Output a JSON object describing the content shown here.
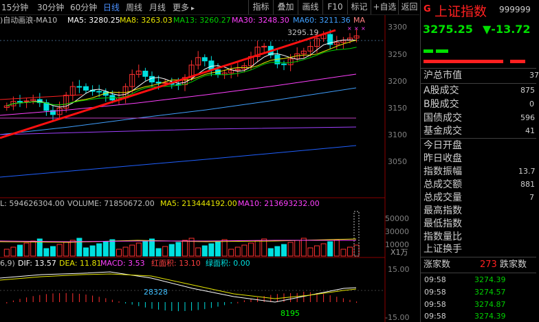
{
  "toolbar": {
    "periods": [
      "15分钟",
      "30分钟",
      "60分钟",
      "日线",
      "周线",
      "月线",
      "更多"
    ],
    "active_period": "日线",
    "more_arrow": "▸",
    "buttons": [
      "指标",
      "叠加",
      "画线",
      "F10",
      "标记",
      "+自选",
      "返回"
    ]
  },
  "main_chart": {
    "header_prefix": ")自动画浪-MA10",
    "ma5_label": "MA5: 3280.25",
    "ma8_label": "MA8: 3263.03",
    "ma13_label": "MA13: 3260.27",
    "ma30_label": "MA30: 3248.30",
    "ma60_label": "MA60: 3211.36",
    "ma_suffix": "MA",
    "price_annotation": "3295.19",
    "price_axis": [
      "3300",
      "3250",
      "3200",
      "3150",
      "3100",
      "3050"
    ],
    "colors": {
      "ma5": "#ffffff",
      "ma8": "#e8e800",
      "ma13": "#ff40ff",
      "ma30": "#00d000",
      "ma60": "#40a0ff",
      "up": "#ff3030",
      "down": "#00e0e0",
      "trend": "#ff1010"
    }
  },
  "volume_chart": {
    "header_prefix": "L: 594626304.00",
    "volume_label": "VOLUME: 71850672.00",
    "ma5_label": "MA5: 213444192.00",
    "ma10_label": "MA10: 213693232.00",
    "axis": [
      "50000",
      "30000",
      "10000"
    ],
    "unit": "X1万"
  },
  "macd_chart": {
    "header_prefix": "6,9)",
    "dif_label": "DIF: 13.57",
    "dea_label": "DEA: 11.81",
    "macd_label": "MACD: 3.53",
    "red_area_label": "红面积: 13.10",
    "green_area_label": "绿面积: 0.00",
    "annotation_1": "28328",
    "annotation_2": "8195",
    "axis": [
      "15.00",
      "-15.00"
    ]
  },
  "quote_panel": {
    "badge": "G",
    "name": "上证指数",
    "code": "999999",
    "price": "3275.25",
    "change": "▼-13.72",
    "change_suffix": "-",
    "rows": [
      {
        "label": "沪总市值",
        "value": "37"
      },
      {
        "label": "A股成交",
        "value": "875"
      },
      {
        "label": "B股成交",
        "value": "0"
      },
      {
        "label": "国债成交",
        "value": "596"
      },
      {
        "label": "基金成交",
        "value": "41"
      },
      {
        "label": "今日开盘",
        "value": ""
      },
      {
        "label": "昨日收盘",
        "value": ""
      },
      {
        "label": "指数振幅",
        "value": "13.7"
      },
      {
        "label": "总成交额",
        "value": "881"
      },
      {
        "label": "总成交量",
        "value": "7"
      },
      {
        "label": "最高指数",
        "value": ""
      },
      {
        "label": "最低指数",
        "value": ""
      },
      {
        "label": "指数量比",
        "value": ""
      },
      {
        "label": "上证换手",
        "value": ""
      }
    ],
    "breadth": {
      "up_label": "涨家数",
      "up_value": "273",
      "down_label": "跌家数"
    },
    "ticks": [
      {
        "time": "09:58",
        "price": "3274.39"
      },
      {
        "time": "09:58",
        "price": "3274.57"
      },
      {
        "time": "09:58",
        "price": "3274.87"
      },
      {
        "time": "09:58",
        "price": "3274.39"
      }
    ]
  }
}
